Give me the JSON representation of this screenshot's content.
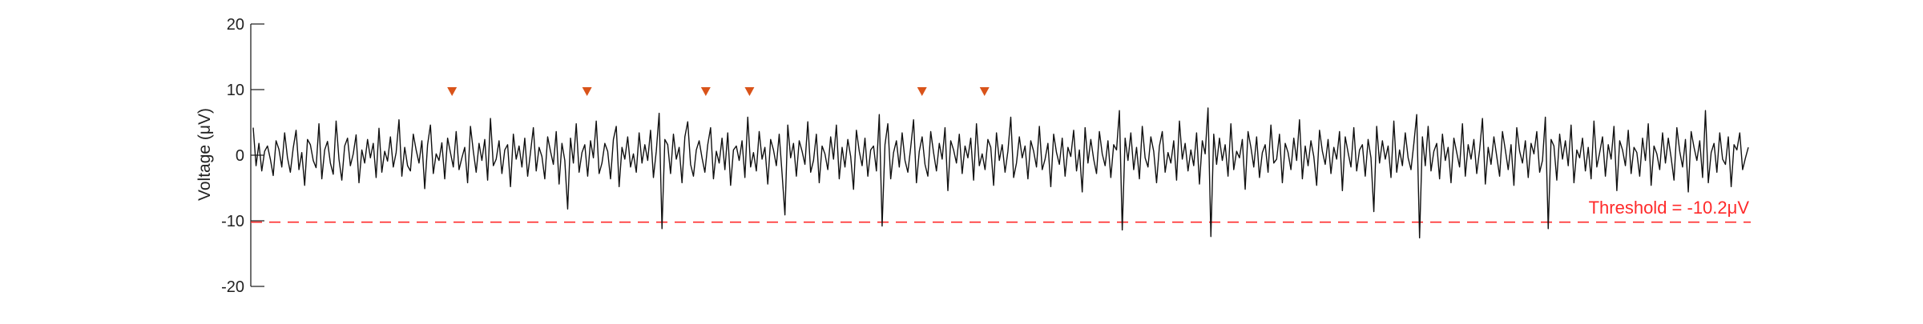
{
  "chart_data": {
    "type": "line",
    "title": "",
    "xlabel": "",
    "ylabel": "Voltage (μV)",
    "ylim": [
      -20,
      20
    ],
    "yticks": [
      20,
      10,
      0,
      -10,
      -20
    ],
    "xlim": [
      0,
      1200
    ],
    "grid": false,
    "series": [
      {
        "values": [
          4.2,
          -1.6,
          1.8,
          -2.4,
          0.6,
          1.4,
          -0.6,
          -3.1,
          2.2,
          0.9,
          -1.8,
          3.4,
          -0.4,
          -2.6,
          1.1,
          3.8,
          -2.2,
          0.4,
          -4.6,
          2.4,
          1.6,
          -0.8,
          -1.9,
          4.8,
          -3.6,
          0.8,
          2.1,
          -1.2,
          -2.9,
          5.2,
          -0.6,
          -3.8,
          1.4,
          2.6,
          -1.6,
          0.2,
          3.1,
          -4.2,
          0.8,
          -1.2,
          2.4,
          -0.4,
          1.8,
          -3.4,
          4.1,
          -2.6,
          0.6,
          -0.9,
          2.8,
          -1.8,
          0.4,
          5.4,
          -3.2,
          1.2,
          -1.6,
          -2.4,
          3.2,
          0.8,
          -1.2,
          2.2,
          -5.1,
          1.6,
          4.6,
          -2.8,
          0.2,
          -0.8,
          1.9,
          -3.6,
          2.6,
          0.4,
          -1.8,
          3.6,
          -2.2,
          -0.4,
          1.2,
          -4.2,
          4.4,
          0.6,
          -2.6,
          1.8,
          -0.8,
          2.4,
          -3.8,
          5.6,
          -1.6,
          -0.6,
          2.2,
          -2.8,
          0.8,
          1.6,
          -4.8,
          3.2,
          -0.6,
          1.4,
          -1.8,
          2.6,
          -3.2,
          0.4,
          4.2,
          -2.4,
          1.2,
          -0.2,
          -3.6,
          2.8,
          0.6,
          -1.4,
          3.6,
          -4.4,
          1.8,
          -0.8,
          -8.2,
          2.6,
          -1.2,
          4.8,
          -2.6,
          0.4,
          1.6,
          -3.2,
          2.2,
          -0.4,
          5.2,
          -2.8,
          -1.2,
          1.8,
          0.6,
          -3.6,
          2.4,
          4.4,
          -4.8,
          1.2,
          -0.6,
          2.8,
          -1.8,
          0.2,
          -2.6,
          3.4,
          -1.2,
          1.6,
          -0.8,
          3.8,
          -3.4,
          0.6,
          6.4,
          -11.2,
          2.4,
          1.6,
          -2.8,
          3.2,
          -0.6,
          1.2,
          -4.2,
          2.8,
          5.1,
          -1.4,
          -3.2,
          0.8,
          2.2,
          -0.4,
          -2.6,
          1.6,
          4.2,
          -3.6,
          0.6,
          -1.2,
          2.6,
          -2.2,
          3.4,
          -4.6,
          0.8,
          1.4,
          -0.8,
          2.2,
          -3.4,
          5.8,
          -1.8,
          0.4,
          -2.4,
          3.6,
          -0.6,
          1.2,
          -4.4,
          2.4,
          0.8,
          -1.6,
          3.2,
          -2.8,
          -9.1,
          4.6,
          -0.4,
          1.8,
          -3.2,
          2.2,
          0.6,
          -1.4,
          5.1,
          -2.6,
          -0.8,
          3.2,
          -4.2,
          1.4,
          0.2,
          -2.2,
          2.8,
          -0.6,
          4.6,
          -3.6,
          1.2,
          -1.8,
          2.4,
          -0.2,
          -5.2,
          3.8,
          0.6,
          -1.6,
          2.6,
          -3.2,
          0.8,
          1.4,
          -2.4,
          6.2,
          -10.8,
          1.6,
          4.8,
          -3.6,
          0.4,
          2.2,
          -1.8,
          3.4,
          -0.8,
          -2.6,
          1.2,
          5.4,
          -4.2,
          0.6,
          2.8,
          -1.4,
          -3.2,
          3.6,
          0.4,
          -2.4,
          1.8,
          -0.6,
          4.2,
          -5.4,
          2.2,
          0.8,
          -1.2,
          3.2,
          -2.8,
          1.4,
          -0.4,
          2.6,
          -3.8,
          4.8,
          -1.6,
          0.2,
          -2.2,
          2.4,
          1.2,
          -4.6,
          3.4,
          -0.8,
          1.6,
          -2.6,
          0.6,
          5.8,
          -3.4,
          -1.2,
          2.8,
          -0.4,
          1.4,
          -3.6,
          2.2,
          0.6,
          -1.8,
          4.4,
          -2.2,
          -0.6,
          1.8,
          -4.8,
          3.2,
          0.4,
          -1.4,
          2.6,
          -3.2,
          1.2,
          -0.2,
          3.8,
          -2.4,
          0.8,
          -5.6,
          4.2,
          -1.2,
          2.4,
          -0.6,
          -2.8,
          3.6,
          0.2,
          -1.6,
          2.2,
          -3.4,
          1.6,
          0.8,
          6.8,
          -11.4,
          2.6,
          -0.8,
          3.4,
          -2.2,
          1.2,
          -3.6,
          4.4,
          -0.4,
          -1.8,
          2.8,
          0.6,
          -4.2,
          1.4,
          3.6,
          -2.6,
          0.4,
          -1.2,
          2.2,
          -3.8,
          5.2,
          -0.6,
          1.8,
          -2.4,
          0.8,
          -1.6,
          3.4,
          -4.4,
          2.2,
          0.2,
          7.2,
          -12.4,
          3.2,
          -1.4,
          2.6,
          -0.8,
          1.6,
          -3.2,
          4.8,
          -2.2,
          0.6,
          -0.4,
          2.4,
          -5.2,
          3.6,
          1.2,
          -1.8,
          2.8,
          -3.4,
          0.4,
          1.6,
          -2.6,
          4.6,
          -1.2,
          -0.6,
          3.2,
          -4.2,
          1.8,
          0.4,
          -2.2,
          2.6,
          -0.8,
          5.4,
          -3.6,
          1.4,
          -1.6,
          2.2,
          -0.2,
          -4.6,
          3.8,
          0.6,
          -1.4,
          2.4,
          -2.8,
          1.2,
          -0.6,
          3.6,
          -5.4,
          2.8,
          0.4,
          -1.8,
          4.2,
          -2.4,
          0.8,
          1.6,
          -3.2,
          2.4,
          -0.4,
          -8.6,
          4.4,
          -1.2,
          2.2,
          -0.6,
          1.4,
          -3.4,
          5.2,
          -2.6,
          0.8,
          -1.6,
          3.4,
          -0.4,
          -2.2,
          1.8,
          6.2,
          -12.6,
          2.8,
          -1.6,
          4.4,
          -2.4,
          0.6,
          1.8,
          -3.6,
          3.2,
          -0.8,
          1.2,
          -4.2,
          2.6,
          0.4,
          -1.8,
          4.8,
          -3.2,
          1.6,
          -0.6,
          2.4,
          -2.8,
          0.8,
          5.6,
          -4.4,
          1.2,
          -1.4,
          2.8,
          -0.2,
          -3.2,
          3.6,
          0.8,
          -2.2,
          1.6,
          -4.6,
          4.2,
          0.6,
          -1.2,
          2.2,
          -3.4,
          1.8,
          0.2,
          3.6,
          -2.6,
          -0.8,
          5.8,
          -11.2,
          2.4,
          1.4,
          -3.8,
          3.2,
          -0.6,
          2.2,
          -1.6,
          4.6,
          -4.2,
          0.8,
          -0.4,
          2.6,
          -2.4,
          1.2,
          -3.6,
          5.2,
          -1.8,
          0.4,
          2.8,
          -3.2,
          1.6,
          -0.6,
          4.4,
          -5.4,
          2.2,
          0.8,
          -1.6,
          3.8,
          -2.8,
          1.2,
          0.4,
          -3.2,
          2.6,
          -0.8,
          4.8,
          -4.6,
          1.4,
          0.2,
          -2.2,
          3.4,
          -1.2,
          2.6,
          -0.4,
          -3.8,
          4.2,
          0.6,
          -1.8,
          2.4,
          -5.6,
          3.6,
          1.2,
          -0.8,
          2.2,
          -3.4,
          6.8,
          -4.2,
          0.4,
          1.8,
          -2.6,
          3.4,
          -0.6,
          -1.4,
          2.8,
          -4.8,
          1.6,
          0.8,
          3.4,
          -2.2,
          -0.4,
          1.2
        ]
      }
    ],
    "spike_markers": [
      {
        "t": 161,
        "color": "#d95319"
      },
      {
        "t": 269,
        "color": "#d95319"
      },
      {
        "t": 364,
        "color": "#d95319"
      },
      {
        "t": 399,
        "color": "#d95319"
      },
      {
        "t": 537,
        "color": "#d95319"
      },
      {
        "t": 587,
        "color": "#d95319"
      }
    ],
    "threshold": {
      "value": -10.2,
      "label": "Threshold = -10.2μV",
      "color": "#ff2a2a"
    },
    "line_color": "#111111",
    "axis_color": "#222222"
  }
}
